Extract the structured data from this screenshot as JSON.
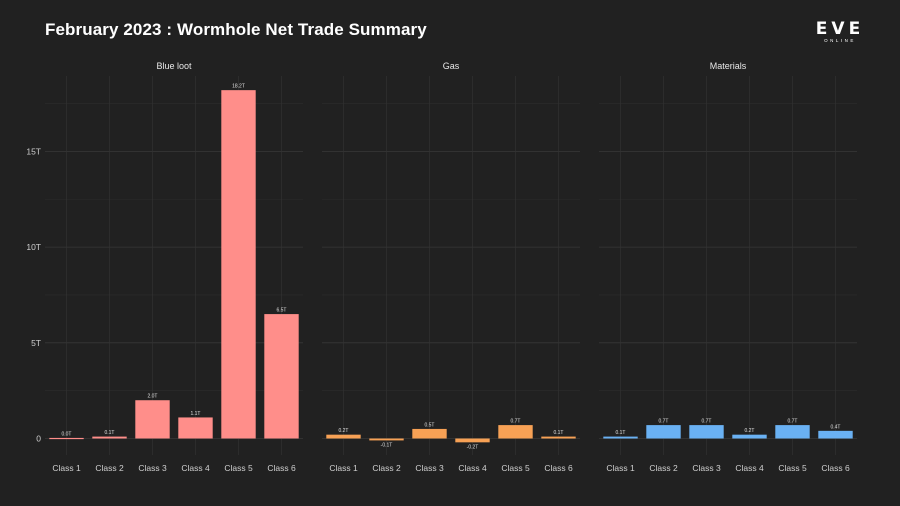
{
  "header": {
    "title": "February 2023 : Wormhole Net Trade Summary"
  },
  "logo": {
    "word": "EVE",
    "sub": "ONLINE"
  },
  "chart_data": {
    "type": "bar",
    "title": "February 2023 : Wormhole Net Trade Summary",
    "xlabel": "",
    "ylabel": "",
    "ylim": [
      -1,
      18.7
    ],
    "yticks": [
      0,
      5,
      10,
      15
    ],
    "ytick_labels": [
      "0",
      "5T",
      "10T",
      "15T"
    ],
    "grid": true,
    "categories": [
      "Class 1",
      "Class 2",
      "Class 3",
      "Class 4",
      "Class 5",
      "Class 6"
    ],
    "facets": [
      {
        "name": "Blue loot",
        "color": "#ff8e8a",
        "values": [
          0.03,
          0.1,
          2.0,
          1.1,
          18.2,
          6.5
        ],
        "labels": [
          "0.0T",
          "0.1T",
          "2.0T",
          "1.1T",
          "18.2T",
          "6.5T"
        ]
      },
      {
        "name": "Gas",
        "color": "#f7a155",
        "values": [
          0.2,
          -0.1,
          0.5,
          -0.2,
          0.7,
          0.1
        ],
        "labels": [
          "0.2T",
          "-0.1T",
          "0.5T",
          "-0.2T",
          "0.7T",
          "0.1T"
        ]
      },
      {
        "name": "Materials",
        "color": "#6ab1f3",
        "values": [
          0.1,
          0.7,
          0.7,
          0.2,
          0.7,
          0.4
        ],
        "labels": [
          "0.1T",
          "0.7T",
          "0.7T",
          "0.2T",
          "0.7T",
          "0.4T"
        ]
      }
    ]
  }
}
